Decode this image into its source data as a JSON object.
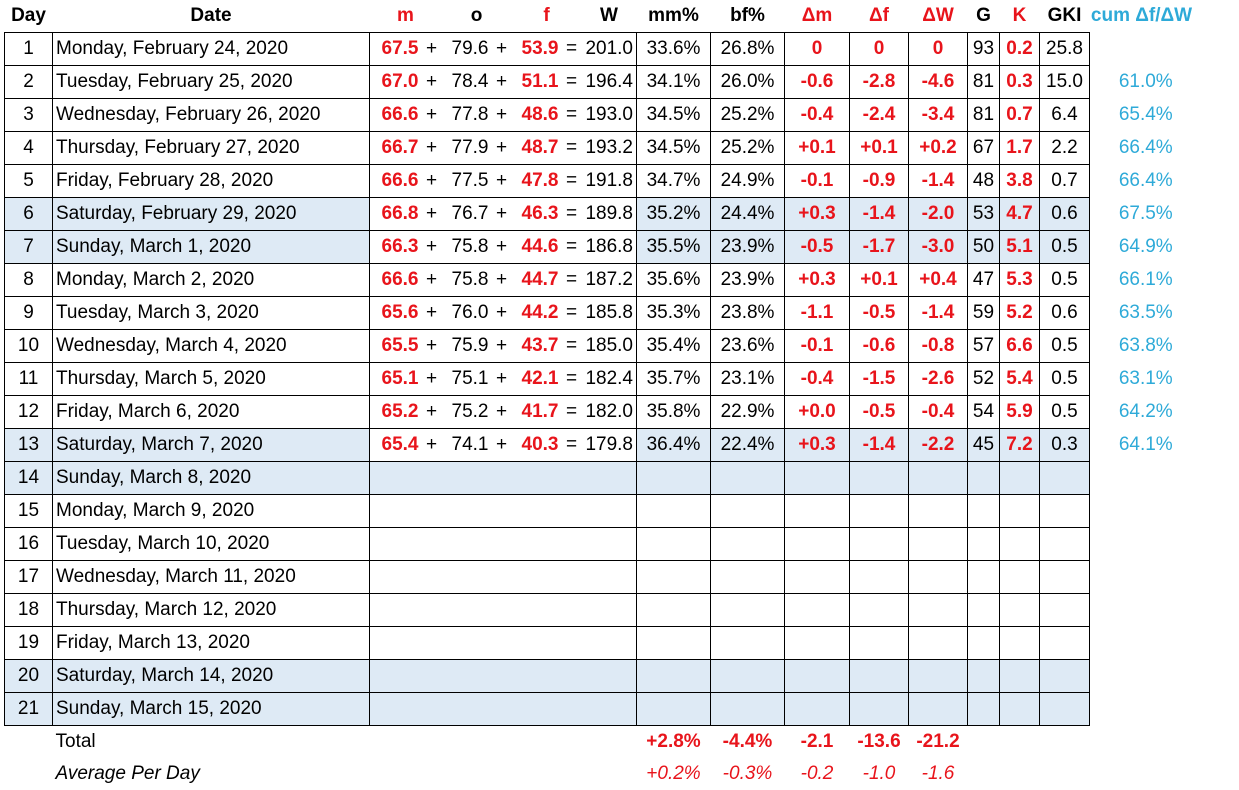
{
  "headers": {
    "day": "Day",
    "date": "Date",
    "m": "m",
    "o": "o",
    "f": "f",
    "w": "W",
    "mm_pct": "mm%",
    "bf_pct": "bf%",
    "dm": "Δm",
    "df": "Δf",
    "dw": "ΔW",
    "g": "G",
    "k": "K",
    "gki": "GKI",
    "cum": "cum Δf/ΔW"
  },
  "rows": [
    {
      "day": "1",
      "date": "Monday, February 24, 2020",
      "m": "67.5",
      "o": "79.6",
      "f": "53.9",
      "w": "201.0",
      "mm": "33.6%",
      "bf": "26.8%",
      "dm": "0",
      "df": "0",
      "dw": "0",
      "g": "93",
      "k": "0.2",
      "gki": "25.8",
      "cum": "",
      "weekend": false
    },
    {
      "day": "2",
      "date": "Tuesday, February 25, 2020",
      "m": "67.0",
      "o": "78.4",
      "f": "51.1",
      "w": "196.4",
      "mm": "34.1%",
      "bf": "26.0%",
      "dm": "-0.6",
      "df": "-2.8",
      "dw": "-4.6",
      "g": "81",
      "k": "0.3",
      "gki": "15.0",
      "cum": "61.0%",
      "weekend": false
    },
    {
      "day": "3",
      "date": "Wednesday, February 26, 2020",
      "m": "66.6",
      "o": "77.8",
      "f": "48.6",
      "w": "193.0",
      "mm": "34.5%",
      "bf": "25.2%",
      "dm": "-0.4",
      "df": "-2.4",
      "dw": "-3.4",
      "g": "81",
      "k": "0.7",
      "gki": "6.4",
      "cum": "65.4%",
      "weekend": false
    },
    {
      "day": "4",
      "date": "Thursday, February 27, 2020",
      "m": "66.7",
      "o": "77.9",
      "f": "48.7",
      "w": "193.2",
      "mm": "34.5%",
      "bf": "25.2%",
      "dm": "+0.1",
      "df": "+0.1",
      "dw": "+0.2",
      "g": "67",
      "k": "1.7",
      "gki": "2.2",
      "cum": "66.4%",
      "weekend": false
    },
    {
      "day": "5",
      "date": "Friday, February 28, 2020",
      "m": "66.6",
      "o": "77.5",
      "f": "47.8",
      "w": "191.8",
      "mm": "34.7%",
      "bf": "24.9%",
      "dm": "-0.1",
      "df": "-0.9",
      "dw": "-1.4",
      "g": "48",
      "k": "3.8",
      "gki": "0.7",
      "cum": "66.4%",
      "weekend": false
    },
    {
      "day": "6",
      "date": "Saturday, February 29, 2020",
      "m": "66.8",
      "o": "76.7",
      "f": "46.3",
      "w": "189.8",
      "mm": "35.2%",
      "bf": "24.4%",
      "dm": "+0.3",
      "df": "-1.4",
      "dw": "-2.0",
      "g": "53",
      "k": "4.7",
      "gki": "0.6",
      "cum": "67.5%",
      "weekend": true
    },
    {
      "day": "7",
      "date": "Sunday, March 1, 2020",
      "m": "66.3",
      "o": "75.8",
      "f": "44.6",
      "w": "186.8",
      "mm": "35.5%",
      "bf": "23.9%",
      "dm": "-0.5",
      "df": "-1.7",
      "dw": "-3.0",
      "g": "50",
      "k": "5.1",
      "gki": "0.5",
      "cum": "64.9%",
      "weekend": true
    },
    {
      "day": "8",
      "date": "Monday, March 2, 2020",
      "m": "66.6",
      "o": "75.8",
      "f": "44.7",
      "w": "187.2",
      "mm": "35.6%",
      "bf": "23.9%",
      "dm": "+0.3",
      "df": "+0.1",
      "dw": "+0.4",
      "g": "47",
      "k": "5.3",
      "gki": "0.5",
      "cum": "66.1%",
      "weekend": false
    },
    {
      "day": "9",
      "date": "Tuesday, March 3, 2020",
      "m": "65.6",
      "o": "76.0",
      "f": "44.2",
      "w": "185.8",
      "mm": "35.3%",
      "bf": "23.8%",
      "dm": "-1.1",
      "df": "-0.5",
      "dw": "-1.4",
      "g": "59",
      "k": "5.2",
      "gki": "0.6",
      "cum": "63.5%",
      "weekend": false
    },
    {
      "day": "10",
      "date": "Wednesday, March 4, 2020",
      "m": "65.5",
      "o": "75.9",
      "f": "43.7",
      "w": "185.0",
      "mm": "35.4%",
      "bf": "23.6%",
      "dm": "-0.1",
      "df": "-0.6",
      "dw": "-0.8",
      "g": "57",
      "k": "6.6",
      "gki": "0.5",
      "cum": "63.8%",
      "weekend": false
    },
    {
      "day": "11",
      "date": "Thursday, March 5, 2020",
      "m": "65.1",
      "o": "75.1",
      "f": "42.1",
      "w": "182.4",
      "mm": "35.7%",
      "bf": "23.1%",
      "dm": "-0.4",
      "df": "-1.5",
      "dw": "-2.6",
      "g": "52",
      "k": "5.4",
      "gki": "0.5",
      "cum": "63.1%",
      "weekend": false
    },
    {
      "day": "12",
      "date": "Friday, March 6, 2020",
      "m": "65.2",
      "o": "75.2",
      "f": "41.7",
      "w": "182.0",
      "mm": "35.8%",
      "bf": "22.9%",
      "dm": "+0.0",
      "df": "-0.5",
      "dw": "-0.4",
      "g": "54",
      "k": "5.9",
      "gki": "0.5",
      "cum": "64.2%",
      "weekend": false
    },
    {
      "day": "13",
      "date": "Saturday, March 7, 2020",
      "m": "65.4",
      "o": "74.1",
      "f": "40.3",
      "w": "179.8",
      "mm": "36.4%",
      "bf": "22.4%",
      "dm": "+0.3",
      "df": "-1.4",
      "dw": "-2.2",
      "g": "45",
      "k": "7.2",
      "gki": "0.3",
      "cum": "64.1%",
      "weekend": true
    },
    {
      "day": "14",
      "date": "Sunday, March 8, 2020",
      "weekend": true
    },
    {
      "day": "15",
      "date": "Monday, March 9, 2020",
      "weekend": false
    },
    {
      "day": "16",
      "date": "Tuesday, March 10, 2020",
      "weekend": false
    },
    {
      "day": "17",
      "date": "Wednesday, March 11, 2020",
      "weekend": false
    },
    {
      "day": "18",
      "date": "Thursday, March 12, 2020",
      "weekend": false
    },
    {
      "day": "19",
      "date": "Friday, March 13, 2020",
      "weekend": false
    },
    {
      "day": "20",
      "date": "Saturday, March 14, 2020",
      "weekend": true
    },
    {
      "day": "21",
      "date": "Sunday, March 15, 2020",
      "weekend": true
    }
  ],
  "operators": {
    "plus": "+",
    "equals": "="
  },
  "total": {
    "label": "Total",
    "mm": "+2.8%",
    "bf": "-4.4%",
    "dm": "-2.1",
    "df": "-13.6",
    "dw": "-21.2"
  },
  "average": {
    "label": "Average Per Day",
    "mm": "+0.2%",
    "bf": "-0.3%",
    "dm": "-0.2",
    "df": "-1.0",
    "dw": "-1.6"
  }
}
